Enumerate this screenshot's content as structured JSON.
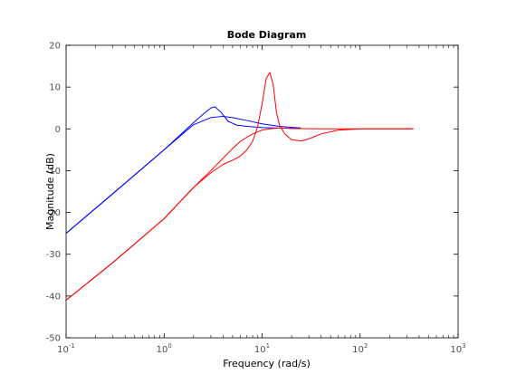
{
  "chart_data": {
    "type": "line",
    "title": "Bode Diagram",
    "xlabel": "Frequency  (rad/s)",
    "ylabel": "Magnitude (dB)",
    "x_scale": "log",
    "xlim": [
      0.1,
      1000
    ],
    "ylim": [
      -50,
      20
    ],
    "x_ticks": [
      {
        "value": 0.1,
        "base": "10",
        "exp": "-1"
      },
      {
        "value": 1,
        "base": "10",
        "exp": "0"
      },
      {
        "value": 10,
        "base": "10",
        "exp": "1"
      },
      {
        "value": 100,
        "base": "10",
        "exp": "2"
      },
      {
        "value": 1000,
        "base": "10",
        "exp": "3"
      }
    ],
    "y_ticks": [
      20,
      10,
      0,
      -10,
      -20,
      -30,
      -40,
      -50
    ],
    "grid": false,
    "legend": "none",
    "series": [
      {
        "color": "#0000ff",
        "x": [
          0.1,
          0.3,
          1,
          2,
          2.5,
          3,
          3.3,
          3.8,
          4.5,
          5.5,
          7,
          10,
          15,
          25
        ],
        "y": [
          -25,
          -15.5,
          -5,
          1.5,
          3.5,
          5,
          5.3,
          4,
          1.8,
          0.9,
          0.6,
          0.3,
          0.2,
          0.1
        ]
      },
      {
        "color": "#0000ff",
        "x": [
          0.1,
          0.3,
          1,
          2,
          3,
          4,
          5,
          7,
          10,
          15,
          25
        ],
        "y": [
          -25,
          -15.5,
          -5,
          1,
          2.7,
          3,
          2.7,
          2,
          1.2,
          0.6,
          0.2
        ]
      },
      {
        "color": "#ff0000",
        "x": [
          0.1,
          0.3,
          1,
          2,
          3,
          4,
          5,
          6,
          7,
          8,
          9,
          10,
          11,
          12,
          13,
          14,
          15,
          17,
          20,
          25,
          30,
          40,
          60,
          100,
          200,
          350
        ],
        "y": [
          -41,
          -32,
          -21.5,
          -14,
          -10.5,
          -8.5,
          -7.5,
          -6.5,
          -5,
          -3,
          0.5,
          6,
          12,
          13.5,
          10.5,
          4,
          1,
          -1.2,
          -2.6,
          -2.9,
          -2.4,
          -1.2,
          -0.3,
          0,
          0,
          0
        ]
      },
      {
        "color": "#ff0000",
        "x": [
          0.1,
          0.3,
          1,
          2,
          3,
          4,
          5,
          6,
          7,
          8,
          10,
          12,
          15,
          20,
          40,
          100,
          200,
          350
        ],
        "y": [
          -41,
          -32,
          -21.5,
          -14,
          -10,
          -7,
          -4.7,
          -3,
          -2,
          -1.2,
          -0.3,
          0,
          0.2,
          0.1,
          0,
          0,
          0,
          0
        ]
      }
    ]
  }
}
